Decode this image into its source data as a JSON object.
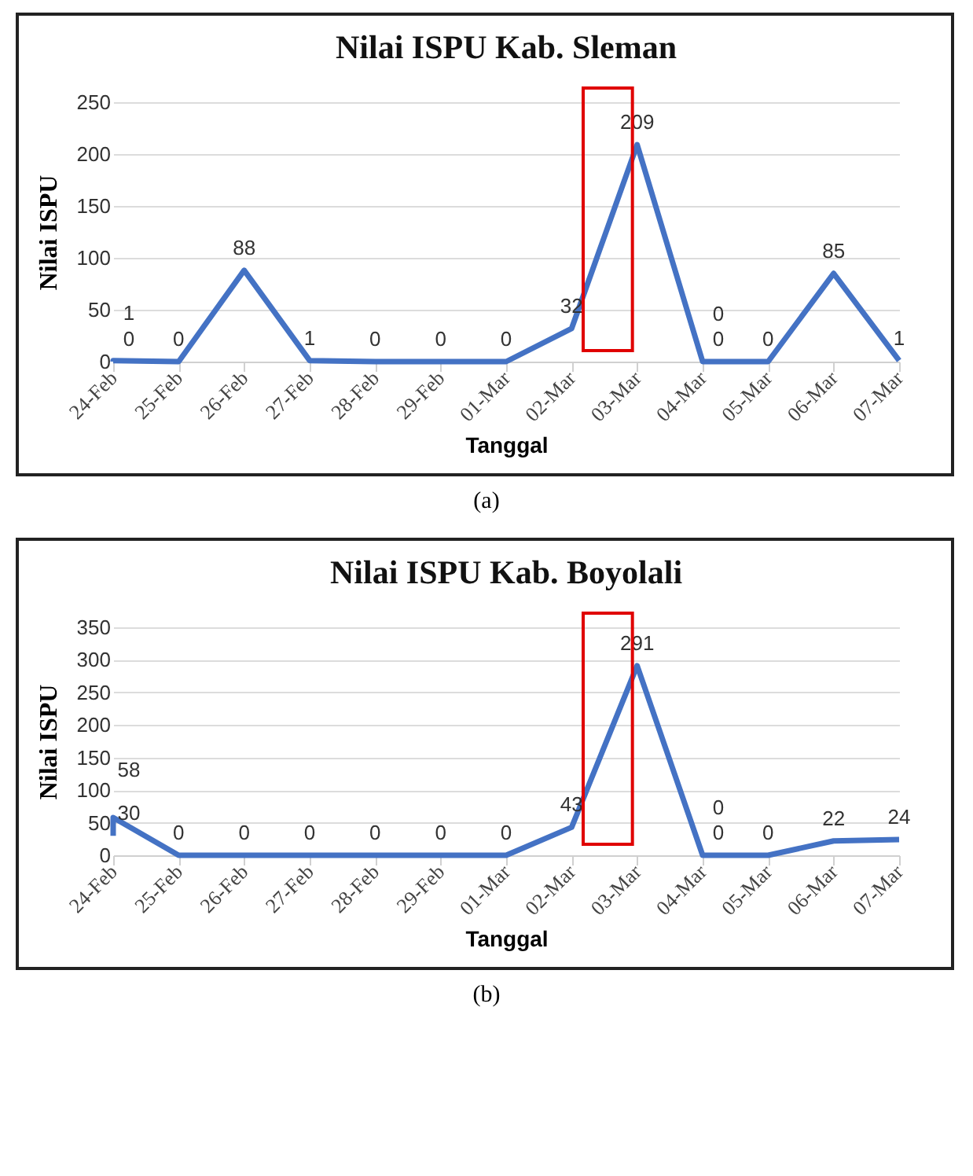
{
  "chart_data": [
    {
      "type": "line",
      "title": "Nilai ISPU Kab. Sleman",
      "xlabel": "Tanggal",
      "ylabel": "Nilai ISPU",
      "x": [
        "--02-24",
        "--02-24",
        "--02-25",
        "--02-26",
        "--02-27",
        "--02-28",
        "--02-29",
        "--03-01",
        "--03-02",
        "--03-03",
        "--03-04",
        "--03-04",
        "--03-05",
        "--03-06",
        "--03-07"
      ],
      "series": [
        {
          "color": "#4472c4",
          "values": [
            0,
            1,
            0,
            88,
            1,
            0,
            0,
            0,
            32,
            209,
            0,
            0,
            0,
            85,
            1
          ]
        }
      ],
      "xlim": [
        "--02-24",
        "--03-07"
      ],
      "xticks": [
        {
          "value": "--02-24",
          "label": "24-Feb"
        },
        {
          "value": "--02-25",
          "label": "25-Feb"
        },
        {
          "value": "--02-26",
          "label": "26-Feb"
        },
        {
          "value": "--02-27",
          "label": "27-Feb"
        },
        {
          "value": "--02-28",
          "label": "28-Feb"
        },
        {
          "value": "--02-29",
          "label": "29-Feb"
        },
        {
          "value": "--03-01",
          "label": "01-Mar"
        },
        {
          "value": "--03-02",
          "label": "02-Mar"
        },
        {
          "value": "--03-03",
          "label": "03-Mar"
        },
        {
          "value": "--03-04",
          "label": "04-Mar"
        },
        {
          "value": "--03-05",
          "label": "05-Mar"
        },
        {
          "value": "--03-06",
          "label": "06-Mar"
        },
        {
          "value": "--03-07",
          "label": "07-Mar"
        }
      ],
      "ylim": [
        0,
        250
      ],
      "yticks": [
        0,
        50,
        100,
        150,
        200,
        250
      ],
      "grid": "y",
      "legend": false,
      "marker": "none",
      "line_style": "solid",
      "data_labels": true,
      "annotations": [
        "(a)"
      ]
    },
    {
      "type": "line",
      "title": "Nilai ISPU Kab. Boyolali",
      "xlabel": "Tanggal",
      "ylabel": "Nilai ISPU",
      "x": [
        "--02-24",
        "--02-24",
        "--02-25",
        "--02-26",
        "--02-27",
        "--02-28",
        "--02-29",
        "--03-01",
        "--03-02",
        "--03-03",
        "--03-04",
        "--03-04",
        "--03-05",
        "--03-06",
        "--03-07"
      ],
      "series": [
        {
          "color": "#4472c4",
          "values": [
            30,
            58,
            0,
            0,
            0,
            0,
            0,
            0,
            43,
            291,
            0,
            0,
            0,
            22,
            24
          ]
        }
      ],
      "xlim": [
        "--02-24",
        "--03-07"
      ],
      "xticks": [
        {
          "value": "--02-24",
          "label": "24-Feb"
        },
        {
          "value": "--02-25",
          "label": "25-Feb"
        },
        {
          "value": "--02-26",
          "label": "26-Feb"
        },
        {
          "value": "--02-27",
          "label": "27-Feb"
        },
        {
          "value": "--02-28",
          "label": "28-Feb"
        },
        {
          "value": "--02-29",
          "label": "29-Feb"
        },
        {
          "value": "--03-01",
          "label": "01-Mar"
        },
        {
          "value": "--03-02",
          "label": "02-Mar"
        },
        {
          "value": "--03-03",
          "label": "03-Mar"
        },
        {
          "value": "--03-04",
          "label": "04-Mar"
        },
        {
          "value": "--03-05",
          "label": "05-Mar"
        },
        {
          "value": "--03-06",
          "label": "06-Mar"
        },
        {
          "value": "--03-07",
          "label": "07-Mar"
        }
      ],
      "ylim": [
        0,
        350
      ],
      "yticks": [
        0,
        50,
        100,
        150,
        200,
        250,
        300,
        350
      ],
      "grid": "y",
      "legend": false,
      "marker": "none",
      "line_style": "solid",
      "data_labels": true,
      "annotations": [
        "(b)"
      ]
    }
  ]
}
